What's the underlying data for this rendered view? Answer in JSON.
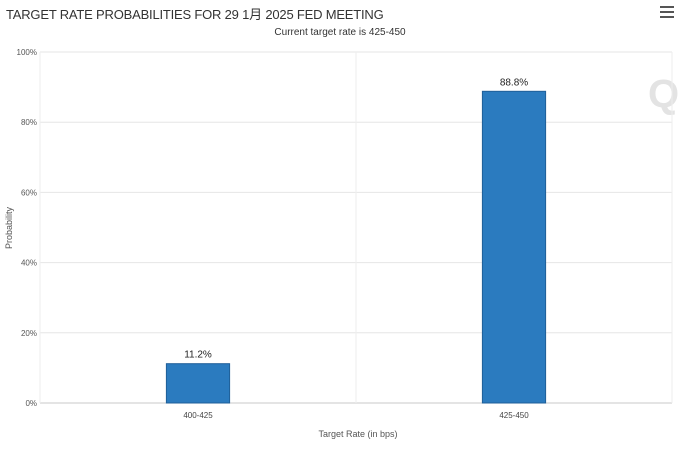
{
  "chart_data": {
    "type": "bar",
    "title": "TARGET RATE PROBABILITIES FOR 29 1月 2025 FED MEETING",
    "subtitle": "Current target rate is 425-450",
    "categories": [
      "400-425",
      "425-450"
    ],
    "values": [
      11.2,
      88.8
    ],
    "data_labels": [
      "11.2%",
      "88.8%"
    ],
    "xlabel": "Target Rate (in bps)",
    "ylabel": "Probability",
    "ylim": [
      0,
      100
    ],
    "yticks": [
      0,
      20,
      40,
      60,
      80,
      100
    ],
    "ytick_labels": [
      "0%",
      "20%",
      "40%",
      "60%",
      "80%",
      "100%"
    ],
    "grid": true,
    "legend": "none",
    "bar_color": "#2b7bbf",
    "watermark_glyph": "Q"
  }
}
